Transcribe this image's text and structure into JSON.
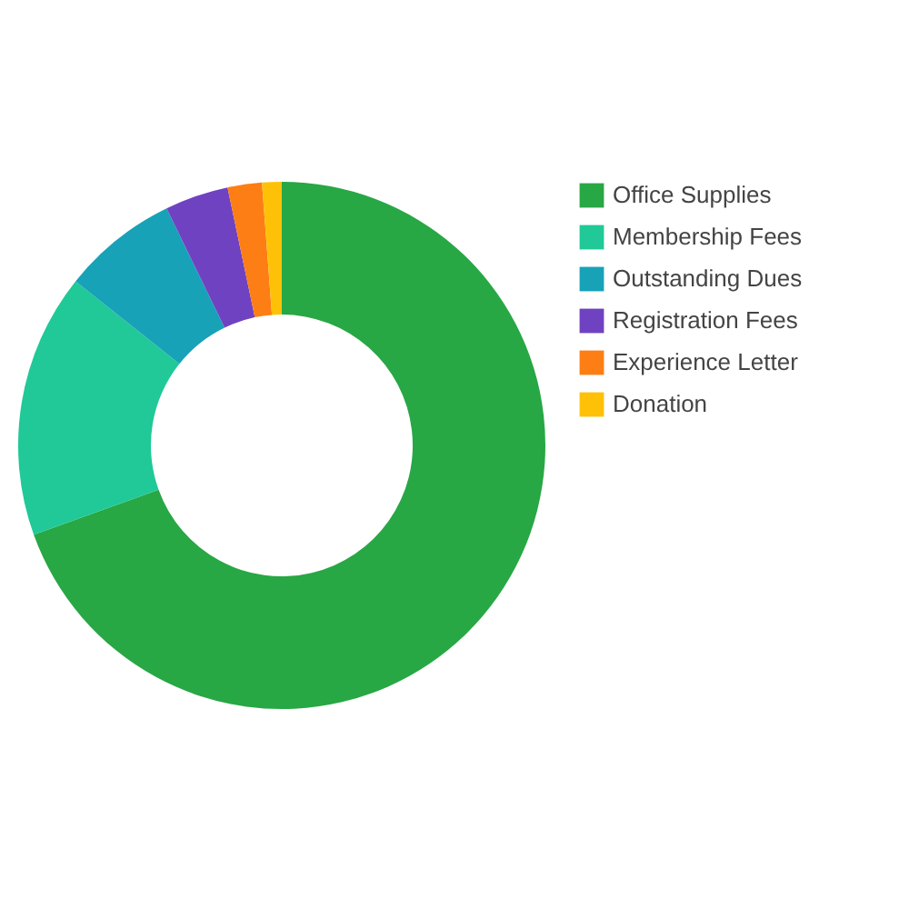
{
  "chart_data": {
    "type": "donut",
    "categories": [
      "Office Supplies",
      "Membership Fees",
      "Outstanding Dues",
      "Registration Fees",
      "Experience Letter",
      "Donation"
    ],
    "values": [
      69.5,
      16.2,
      7.1,
      3.9,
      2.1,
      1.2
    ],
    "colors": [
      "#28a745",
      "#20c997",
      "#17a2b8",
      "#6f42c1",
      "#fd7e14",
      "#ffc107"
    ],
    "legend": "right"
  }
}
